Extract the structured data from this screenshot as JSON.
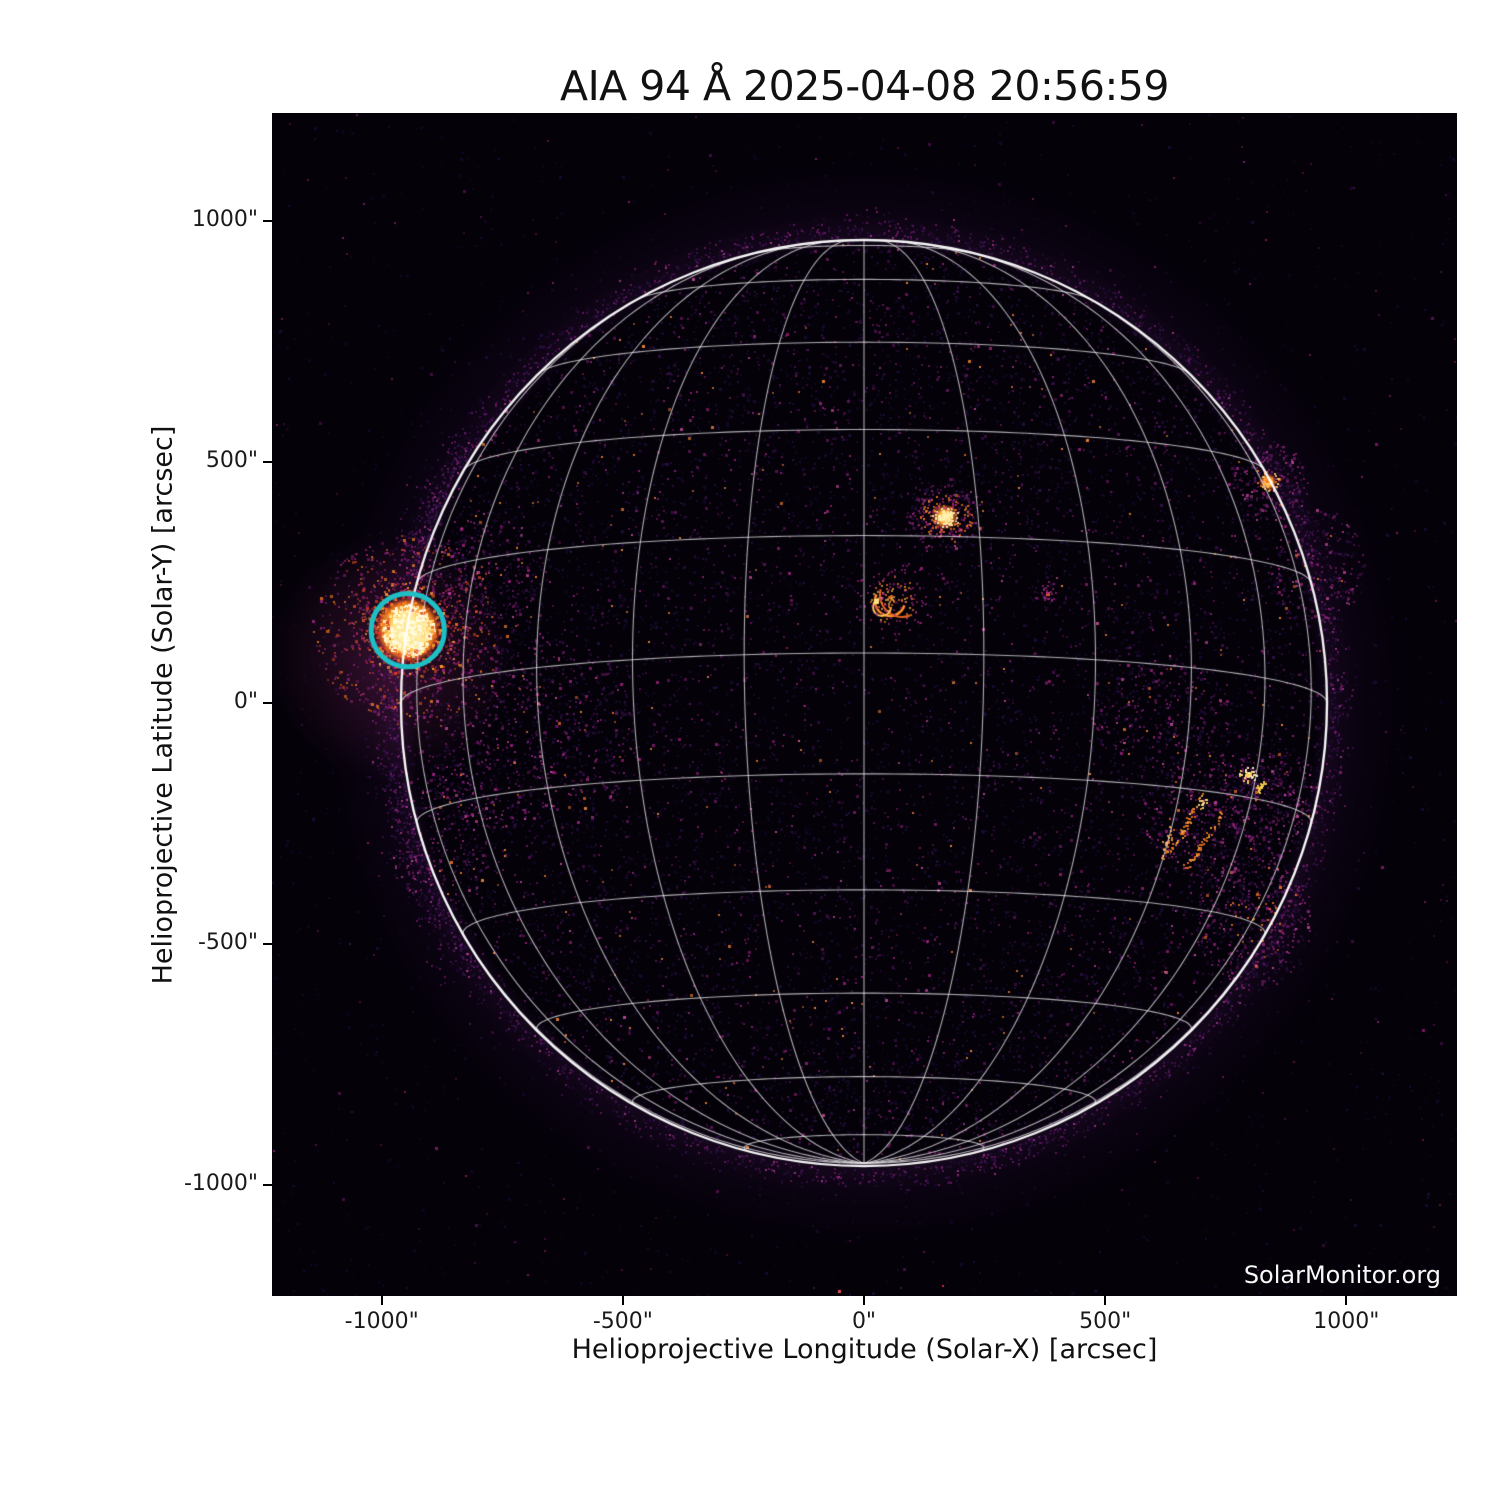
{
  "title": "AIA 94 Å 2025-04-08 20:56:59",
  "watermark": "SolarMonitor.org",
  "axes": {
    "x_label": "Helioprojective Longitude (Solar-X) [arcsec]",
    "y_label": "Helioprojective Latitude (Solar-Y) [arcsec]",
    "x_ticks": [
      {
        "label": "-1000\"",
        "value": -1000
      },
      {
        "label": "-500\"",
        "value": -500
      },
      {
        "label": "0\"",
        "value": 0
      },
      {
        "label": "500\"",
        "value": 500
      },
      {
        "label": "1000\"",
        "value": 1000
      }
    ],
    "y_ticks": [
      {
        "label": "1000\"",
        "value": 1000
      },
      {
        "label": "500\"",
        "value": 500
      },
      {
        "label": "0\"",
        "value": 0
      },
      {
        "label": "-500\"",
        "value": -500
      },
      {
        "label": "-1000\"",
        "value": -1000
      }
    ]
  },
  "chart_data": {
    "type": "heatmap",
    "description": "SDO/AIA 94 Angstrom EUV full-disk solar image with heliographic grid overlay",
    "instrument": "AIA",
    "wavelength": "94 Å",
    "observed": "2025-04-08 20:56:59",
    "xlabel": "Helioprojective Longitude (Solar-X) [arcsec]",
    "ylabel": "Helioprojective Latitude (Solar-Y) [arcsec]",
    "xlim": [
      -1228,
      1230
    ],
    "ylim": [
      -1231,
      1224
    ],
    "grid": true,
    "solar_disk": {
      "center_arcsec": [
        0,
        0
      ],
      "radius_arcsec": 960,
      "b0_deg": -6.2,
      "grid_spacing_deg": 15
    },
    "annotation_circle": {
      "x_arcsec": -946,
      "y_arcsec": 151,
      "radius_arcsec": 76,
      "color": "#1ec0c6"
    },
    "bright_features": [
      {
        "name": "flaring-active-region-east-limb",
        "x_arcsec": -946,
        "y_arcsec": 151,
        "intensity": "saturated",
        "circled": true
      },
      {
        "name": "compact-bright-region-north",
        "x_arcsec": 168,
        "y_arcsec": 386,
        "intensity": "bright",
        "circled": false
      },
      {
        "name": "loop-system-disk-center",
        "x_arcsec": 60,
        "y_arcsec": 220,
        "intensity": "moderate",
        "circled": false
      },
      {
        "name": "faint-point-north",
        "x_arcsec": 380,
        "y_arcsec": 228,
        "intensity": "faint",
        "circled": false
      },
      {
        "name": "west-limb-bright-point",
        "x_arcsec": 838,
        "y_arcsec": 458,
        "intensity": "bright",
        "circled": false
      },
      {
        "name": "faint-cluster-west",
        "x_arcsec": 940,
        "y_arcsec": 282,
        "intensity": "faint",
        "circled": false
      },
      {
        "name": "active-region-southwest-a",
        "x_arcsec": 801,
        "y_arcsec": -153,
        "intensity": "bright",
        "circled": false
      },
      {
        "name": "active-region-southwest-b",
        "x_arcsec": 676,
        "y_arcsec": -207,
        "intensity": "moderate",
        "circled": false
      },
      {
        "name": "active-region-southwest-c",
        "x_arcsec": 649,
        "y_arcsec": -263,
        "intensity": "moderate",
        "circled": false
      },
      {
        "name": "southwest-limb-cluster",
        "x_arcsec": 807,
        "y_arcsec": -444,
        "intensity": "faint",
        "circled": false
      }
    ]
  },
  "colors": {
    "page_background": "#ffffff",
    "image_background": "#040109",
    "grid_line": "#f2f2f2",
    "limb": "#ffffff",
    "annotation": "#1ec0c6",
    "speckle_purple": "#2a1047",
    "speckle_magenta": "#aa2786",
    "speckle_pink": "#d14fa4",
    "feature_orange": "#f6821f",
    "feature_core_yellow": "#fffbd9",
    "title_text": "#111111",
    "tick_text": "#1a1a1a",
    "watermark_text": "#f8f8f8"
  }
}
